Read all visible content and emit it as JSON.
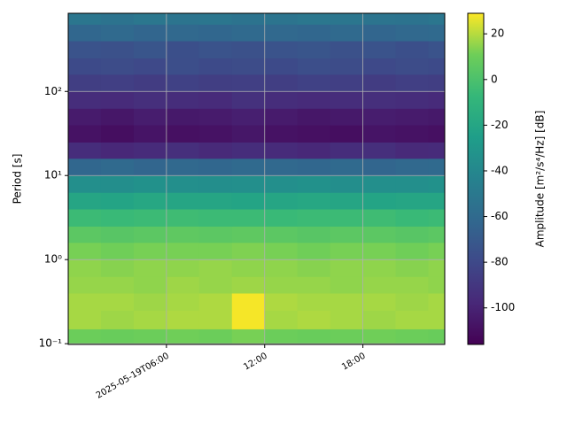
{
  "chart_data": {
    "type": "heatmap",
    "ylabel": "Period [s]",
    "colorbar_label": "Amplitude [m²/s⁴/Hz] [dB]",
    "colormap": "viridis",
    "log_y": true,
    "grid": true,
    "xlim": [
      "2025-05-19T00:00",
      "2025-05-19T23:00"
    ],
    "xticks": [
      "2025-05-19T06:00",
      {
        "value": "2025-05-19T12:00",
        "label": "12:00"
      },
      {
        "value": "2025-05-19T18:00",
        "label": "18:00"
      }
    ],
    "ylim": [
      0.098,
      850
    ],
    "yticks": [
      {
        "value": 0.1,
        "label": "10⁻¹"
      },
      {
        "value": 1,
        "label": "10⁰"
      },
      {
        "value": 10,
        "label": "10¹"
      },
      {
        "value": 100,
        "label": "10²"
      }
    ],
    "clim": [
      -116,
      29
    ],
    "cticks": [
      -100,
      -80,
      -60,
      -40,
      -20,
      0,
      20
    ],
    "x_edges": [
      "2025-05-19T00:00",
      "2025-05-19T02:00",
      "2025-05-19T04:00",
      "2025-05-19T06:00",
      "2025-05-19T08:00",
      "2025-05-19T10:00",
      "2025-05-19T12:00",
      "2025-05-19T14:00",
      "2025-05-19T16:00",
      "2025-05-19T18:00",
      "2025-05-19T20:00",
      "2025-05-19T22:00",
      "2025-05-19T23:00"
    ],
    "y_edges": [
      0.098,
      0.15,
      0.25,
      0.4,
      0.63,
      1,
      1.6,
      2.5,
      4,
      6.3,
      10,
      16,
      25,
      40,
      63,
      100,
      160,
      250,
      400,
      630,
      850
    ],
    "z": [
      [
        10,
        9,
        10,
        11,
        10,
        12,
        10,
        9,
        10,
        11,
        10,
        9
      ],
      [
        18,
        17,
        18,
        19,
        19,
        28,
        18,
        19,
        18,
        17,
        18,
        18
      ],
      [
        18,
        18,
        17,
        18,
        19,
        28,
        19,
        18,
        18,
        18,
        17,
        18
      ],
      [
        16,
        16,
        15,
        17,
        16,
        17,
        16,
        16,
        15,
        16,
        16,
        15
      ],
      [
        15,
        14,
        15,
        15,
        16,
        15,
        15,
        14,
        15,
        15,
        14,
        15
      ],
      [
        12,
        11,
        12,
        12,
        12,
        13,
        12,
        11,
        12,
        12,
        11,
        12
      ],
      [
        5,
        4,
        5,
        6,
        5,
        6,
        5,
        4,
        5,
        5,
        4,
        5
      ],
      [
        -5,
        -6,
        -5,
        -4,
        -5,
        -5,
        -6,
        -5,
        -5,
        -4,
        -6,
        -5
      ],
      [
        -20,
        -21,
        -19,
        -20,
        -20,
        -21,
        -20,
        -19,
        -20,
        -21,
        -20,
        -20
      ],
      [
        -35,
        -36,
        -34,
        -35,
        -36,
        -35,
        -35,
        -34,
        -36,
        -35,
        -35,
        -34
      ],
      [
        -62,
        -60,
        -63,
        -61,
        -62,
        -60,
        -61,
        -62,
        -60,
        -63,
        -61,
        -60
      ],
      [
        -95,
        -98,
        -96,
        -94,
        -97,
        -95,
        -96,
        -98,
        -95,
        -94,
        -97,
        -96
      ],
      [
        -108,
        -110,
        -107,
        -109,
        -108,
        -106,
        -108,
        -109,
        -110,
        -107,
        -108,
        -109
      ],
      [
        -104,
        -106,
        -103,
        -105,
        -104,
        -102,
        -104,
        -106,
        -105,
        -103,
        -104,
        -105
      ],
      [
        -95,
        -96,
        -94,
        -95,
        -96,
        -93,
        -95,
        -96,
        -95,
        -94,
        -95,
        -96
      ],
      [
        -86,
        -85,
        -87,
        -84,
        -86,
        -85,
        -86,
        -84,
        -85,
        -87,
        -85,
        -86
      ],
      [
        -79,
        -78,
        -80,
        -77,
        -79,
        -78,
        -79,
        -77,
        -78,
        -80,
        -78,
        -79
      ],
      [
        -74,
        -75,
        -73,
        -76,
        -74,
        -75,
        -74,
        -73,
        -75,
        -74,
        -76,
        -74
      ],
      [
        -62,
        -60,
        -63,
        -61,
        -62,
        -60,
        -61,
        -62,
        -60,
        -63,
        -61,
        -60
      ],
      [
        -52,
        -54,
        -51,
        -53,
        -52,
        -54,
        -53,
        -51,
        -52,
        -53,
        -54,
        -52
      ]
    ]
  }
}
